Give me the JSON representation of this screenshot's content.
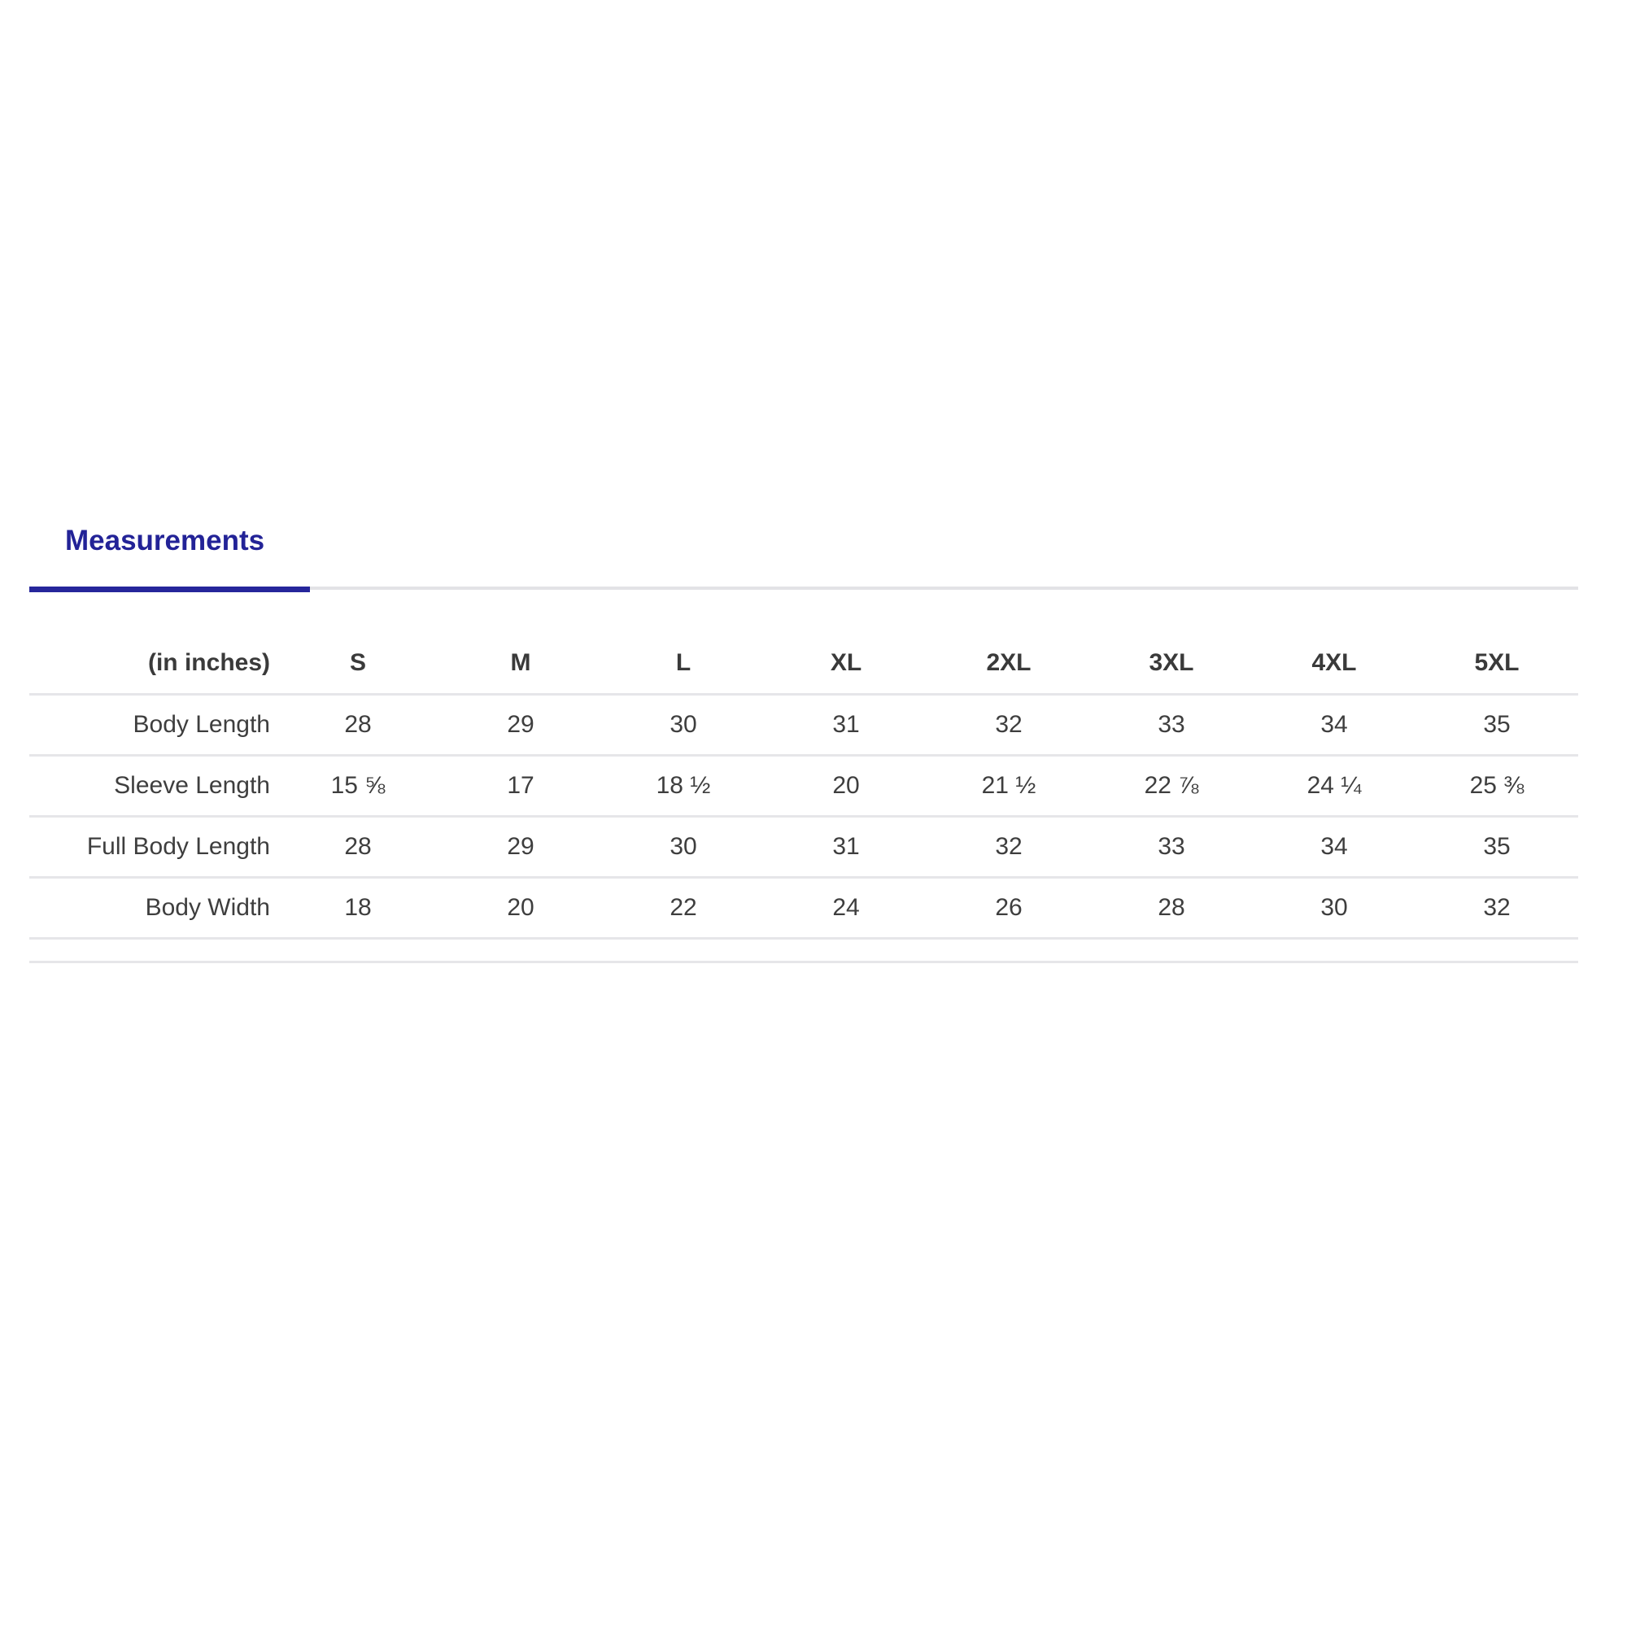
{
  "colors": {
    "accent_navy": "#26269b",
    "tab_text": "#232397",
    "divider_gray": "#e6e6e9",
    "table_text": "#3e3e3e",
    "background": "#ffffff"
  },
  "tab_section": {
    "active_tab_label": "Measurements"
  },
  "size_chart": {
    "unit_header": "(in inches)",
    "size_columns": [
      "S",
      "M",
      "L",
      "XL",
      "2XL",
      "3XL",
      "4XL",
      "5XL"
    ],
    "rows": [
      {
        "label": "Body Length",
        "values": [
          "28",
          "29",
          "30",
          "31",
          "32",
          "33",
          "34",
          "35"
        ]
      },
      {
        "label": "Sleeve Length",
        "values": [
          "15 ⅝",
          "17",
          "18 ½",
          "20",
          "21 ½",
          "22 ⅞",
          "24 ¼",
          "25 ⅜"
        ]
      },
      {
        "label": "Full Body Length",
        "values": [
          "28",
          "29",
          "30",
          "31",
          "32",
          "33",
          "34",
          "35"
        ]
      },
      {
        "label": "Body Width",
        "values": [
          "18",
          "20",
          "22",
          "24",
          "26",
          "28",
          "30",
          "32"
        ]
      }
    ]
  }
}
